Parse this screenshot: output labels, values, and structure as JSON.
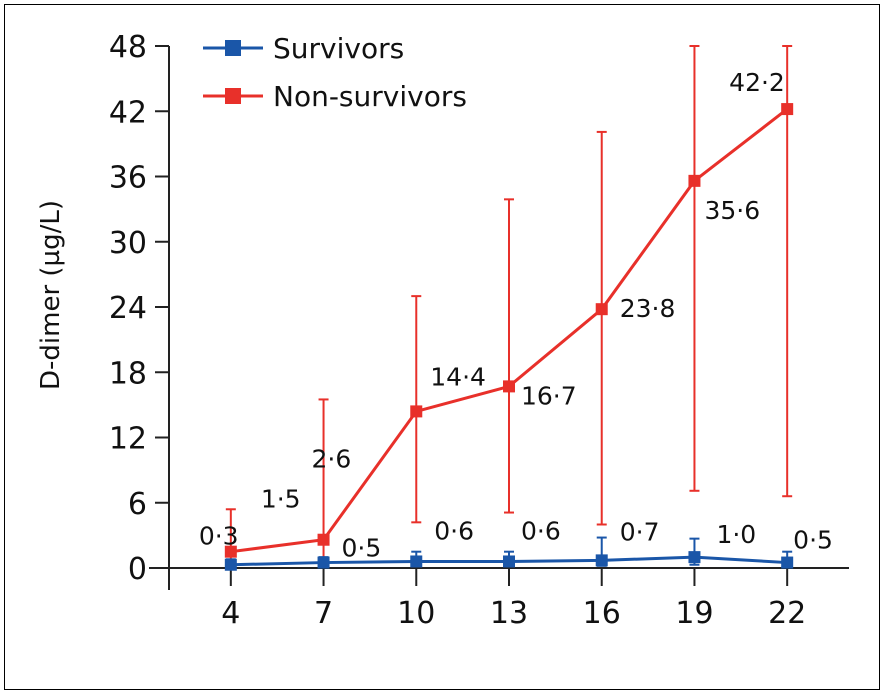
{
  "chart_data": {
    "type": "line",
    "x": [
      4,
      7,
      10,
      13,
      16,
      19,
      22
    ],
    "ylabel": "D-dimer (µg/L)",
    "xlabel": "",
    "ylim": [
      0,
      48
    ],
    "xlim": [
      2,
      24
    ],
    "yticks": [
      0,
      6,
      12,
      18,
      24,
      30,
      36,
      42,
      48
    ],
    "ytick_labels": [
      "0",
      "6",
      "12",
      "18",
      "24",
      "30",
      "36",
      "42",
      "48"
    ],
    "xtick_labels": [
      "4",
      "7",
      "10",
      "13",
      "16",
      "19",
      "22"
    ],
    "legend_position": "top-left",
    "grid": false,
    "series": [
      {
        "name": "Survivors",
        "color": "#1a56a8",
        "values": [
          0.3,
          0.5,
          0.6,
          0.6,
          0.7,
          1.0,
          0.5
        ],
        "labels": [
          "0·3",
          "0·5",
          "0·6",
          "0·6",
          "0·7",
          "1·0",
          "0·5"
        ],
        "error_low": [
          0.1,
          0.2,
          0.2,
          0.2,
          0.2,
          0.3,
          0.2
        ],
        "error_high": [
          0.8,
          1.0,
          1.5,
          1.5,
          2.8,
          2.7,
          1.5
        ]
      },
      {
        "name": "Non-survivors",
        "color": "#e8302a",
        "values": [
          1.5,
          2.6,
          14.4,
          16.7,
          23.8,
          35.6,
          42.2
        ],
        "labels": [
          "1·5",
          "2·6",
          "14·4",
          "16·7",
          "23·8",
          "35·6",
          "42·2"
        ],
        "error_low": [
          0.3,
          0.2,
          4.2,
          5.1,
          4.0,
          7.1,
          6.6
        ],
        "error_high": [
          5.4,
          15.5,
          25.0,
          33.9,
          40.1,
          48.0,
          48.0
        ]
      }
    ]
  }
}
